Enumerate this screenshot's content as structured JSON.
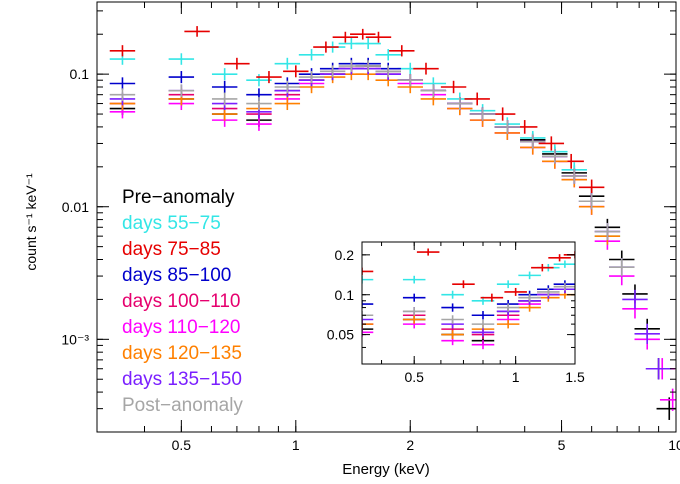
{
  "chart_data": {
    "type": "scatter",
    "xlabel": "Energy (keV)",
    "ylabel": "count s⁻¹ keV⁻¹",
    "xscale": "log",
    "yscale": "log",
    "xlim": [
      0.3,
      10
    ],
    "ylim": [
      0.0002,
      0.35
    ],
    "x_ticks": [
      {
        "value": 0.5,
        "label": "0.5"
      },
      {
        "value": 1,
        "label": "1"
      },
      {
        "value": 2,
        "label": "2"
      },
      {
        "value": 5,
        "label": "5"
      },
      {
        "value": 10,
        "label": "10"
      }
    ],
    "y_ticks": [
      {
        "value": 0.1,
        "label": "0.1"
      },
      {
        "value": 0.01,
        "label": "0.01"
      },
      {
        "value": 0.001,
        "label": "10⁻³"
      }
    ],
    "legend_placement": "left",
    "inset": {
      "xlim": [
        0.35,
        1.5
      ],
      "ylim": [
        0.03,
        0.25
      ],
      "x_ticks": [
        {
          "value": 0.5,
          "label": "0.5"
        },
        {
          "value": 1,
          "label": "1"
        },
        {
          "value": 1.5,
          "label": "1.5"
        }
      ],
      "y_ticks": [
        {
          "value": 0.2,
          "label": "0.2"
        },
        {
          "value": 0.1,
          "label": "0.1"
        },
        {
          "value": 0.05,
          "label": "0.05"
        }
      ]
    },
    "series": [
      {
        "name": "Pre−anomaly",
        "color": "#000000",
        "x": [
          0.35,
          0.5,
          0.65,
          0.8,
          0.95,
          1.1,
          1.25,
          1.4,
          1.55,
          1.75,
          2.0,
          2.3,
          2.7,
          3.1,
          3.6,
          4.2,
          4.8,
          5.4,
          6.0,
          6.6,
          7.2,
          7.8,
          8.4,
          9.0,
          9.6
        ],
        "y": [
          0.055,
          0.065,
          0.05,
          0.045,
          0.075,
          0.09,
          0.1,
          0.11,
          0.115,
          0.105,
          0.09,
          0.075,
          0.06,
          0.05,
          0.04,
          0.032,
          0.025,
          0.018,
          0.012,
          0.007,
          0.004,
          0.0022,
          0.0012,
          0.0006,
          0.0003
        ]
      },
      {
        "name": "days 55−75",
        "color": "#33e6e6",
        "x": [
          0.35,
          0.5,
          0.65,
          0.8,
          0.95,
          1.1,
          1.25,
          1.4,
          1.55,
          1.75,
          2.0,
          2.3,
          2.7,
          3.1,
          3.6,
          4.2,
          4.8,
          5.4,
          6.0,
          6.6
        ],
        "y": [
          0.13,
          0.13,
          0.1,
          0.09,
          0.12,
          0.14,
          0.16,
          0.17,
          0.17,
          0.14,
          0.11,
          0.085,
          0.065,
          0.053,
          0.042,
          0.033,
          0.026,
          0.019,
          0.011,
          0.006
        ]
      },
      {
        "name": "days 75−85",
        "color": "#e60000",
        "x": [
          0.35,
          0.55,
          0.7,
          0.85,
          1.0,
          1.2,
          1.35,
          1.5,
          1.65,
          1.9,
          2.2,
          2.6,
          3.0,
          3.5,
          4.0,
          4.7,
          5.3,
          6.0
        ],
        "y": [
          0.15,
          0.21,
          0.12,
          0.095,
          0.105,
          0.16,
          0.19,
          0.2,
          0.19,
          0.15,
          0.11,
          0.08,
          0.065,
          0.05,
          0.04,
          0.03,
          0.022,
          0.014
        ]
      },
      {
        "name": "days 85−100",
        "color": "#0000cc",
        "x": [
          0.35,
          0.5,
          0.65,
          0.8,
          0.95,
          1.1,
          1.25,
          1.4,
          1.55,
          1.75,
          2.0,
          2.3,
          2.7,
          3.1,
          3.6,
          4.2,
          4.8,
          5.4,
          6.0
        ],
        "y": [
          0.085,
          0.095,
          0.08,
          0.07,
          0.085,
          0.1,
          0.11,
          0.12,
          0.12,
          0.11,
          0.09,
          0.075,
          0.06,
          0.05,
          0.04,
          0.031,
          0.024,
          0.017,
          0.011
        ]
      },
      {
        "name": "days 100−110",
        "color": "#e6006e",
        "x": [
          0.35,
          0.5,
          0.65,
          0.8,
          0.95,
          1.1,
          1.25,
          1.4,
          1.55,
          1.75,
          2.0,
          2.3,
          2.7,
          3.1,
          3.6,
          4.2,
          4.8,
          5.4,
          6.0
        ],
        "y": [
          0.06,
          0.07,
          0.055,
          0.05,
          0.07,
          0.09,
          0.1,
          0.11,
          0.11,
          0.1,
          0.09,
          0.075,
          0.06,
          0.05,
          0.04,
          0.031,
          0.024,
          0.017,
          0.011
        ]
      },
      {
        "name": "days 110−120",
        "color": "#ff00ff",
        "x": [
          0.35,
          0.5,
          0.65,
          0.8,
          0.95,
          1.1,
          1.25,
          1.4,
          1.55,
          1.75,
          2.0,
          2.3,
          2.7,
          3.1,
          3.6,
          4.2,
          4.8,
          5.4,
          6.0,
          6.6,
          7.2,
          7.8,
          8.4,
          9.2,
          9.8
        ],
        "y": [
          0.052,
          0.06,
          0.045,
          0.042,
          0.065,
          0.085,
          0.1,
          0.11,
          0.11,
          0.1,
          0.085,
          0.07,
          0.055,
          0.045,
          0.036,
          0.028,
          0.022,
          0.016,
          0.01,
          0.0055,
          0.003,
          0.0017,
          0.001,
          0.0006,
          0.00035
        ]
      },
      {
        "name": "days 120−135",
        "color": "#ff8000",
        "x": [
          0.35,
          0.5,
          0.65,
          0.8,
          0.95,
          1.1,
          1.25,
          1.4,
          1.55,
          1.75,
          2.0,
          2.3,
          2.7,
          3.1,
          3.6,
          4.2,
          4.8,
          5.4,
          6.0,
          6.6
        ],
        "y": [
          0.06,
          0.065,
          0.05,
          0.055,
          0.06,
          0.08,
          0.095,
          0.1,
          0.1,
          0.09,
          0.08,
          0.065,
          0.055,
          0.045,
          0.036,
          0.028,
          0.022,
          0.016,
          0.01,
          0.006
        ]
      },
      {
        "name": "days 135−150",
        "color": "#7a1fff",
        "x": [
          0.35,
          0.5,
          0.65,
          0.8,
          0.95,
          1.1,
          1.25,
          1.4,
          1.55,
          1.75,
          2.0,
          2.3,
          2.7,
          3.1,
          3.6,
          4.2,
          4.8,
          5.4,
          6.0,
          6.6,
          7.2,
          7.8,
          8.4,
          9.0
        ],
        "y": [
          0.065,
          0.075,
          0.06,
          0.052,
          0.075,
          0.09,
          0.1,
          0.11,
          0.11,
          0.1,
          0.09,
          0.075,
          0.06,
          0.05,
          0.04,
          0.031,
          0.024,
          0.017,
          0.011,
          0.0065,
          0.0035,
          0.002,
          0.0011,
          0.0006
        ]
      },
      {
        "name": "Post−anomaly",
        "color": "#a6a6a6",
        "x": [
          0.35,
          0.5,
          0.65,
          0.8,
          0.95,
          1.1,
          1.25,
          1.4,
          1.55,
          1.75,
          2.0,
          2.3,
          2.7,
          3.1,
          3.6,
          4.2,
          4.8,
          5.4,
          6.0,
          6.6,
          7.2
        ],
        "y": [
          0.07,
          0.075,
          0.065,
          0.06,
          0.08,
          0.095,
          0.105,
          0.115,
          0.115,
          0.105,
          0.09,
          0.075,
          0.06,
          0.05,
          0.04,
          0.031,
          0.024,
          0.017,
          0.011,
          0.0065,
          0.0035
        ]
      }
    ]
  }
}
